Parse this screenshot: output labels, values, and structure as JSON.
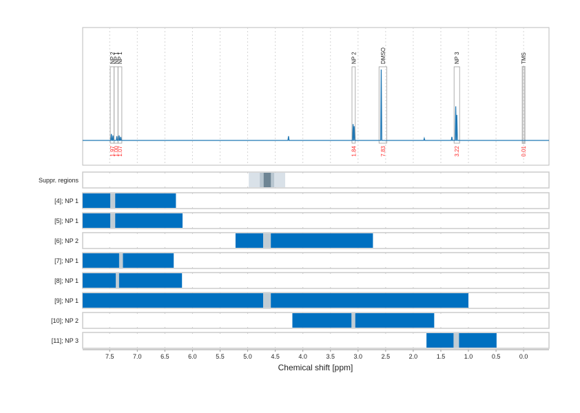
{
  "chart_data": {
    "type": "line",
    "xlabel": "Chemical shift [ppm]",
    "xlim": [
      7.99,
      -0.46
    ],
    "x_reversed": true,
    "xticks": [
      "7.5",
      "7.0",
      "6.5",
      "6.0",
      "5.5",
      "5.0",
      "4.5",
      "4.0",
      "3.5",
      "3.0",
      "2.5",
      "2.0",
      "1.5",
      "1.0",
      "0.5",
      "0.0"
    ],
    "grid": true,
    "colors": {
      "spectrum": "#1f77b4",
      "bar": "#0070c0",
      "gap": "#c0ccd4",
      "integral": "#ff2a2a",
      "frame": "#bbbbbb"
    },
    "spectrum_peaks": [
      {
        "ppm": 7.47,
        "height": 0.09
      },
      {
        "ppm": 7.44,
        "height": 0.07
      },
      {
        "ppm": 7.37,
        "height": 0.06
      },
      {
        "ppm": 7.33,
        "height": 0.07
      },
      {
        "ppm": 7.3,
        "height": 0.05
      },
      {
        "ppm": 4.26,
        "height": 0.06
      },
      {
        "ppm": 3.09,
        "height": 0.23
      },
      {
        "ppm": 3.07,
        "height": 0.2
      },
      {
        "ppm": 2.58,
        "height": 1.0
      },
      {
        "ppm": 1.8,
        "height": 0.03
      },
      {
        "ppm": 1.3,
        "height": 0.05
      },
      {
        "ppm": 1.23,
        "height": 0.48
      },
      {
        "ppm": 1.21,
        "height": 0.36
      }
    ],
    "peak_regions": [
      {
        "label": "NP 2",
        "from": 7.49,
        "to": 7.42,
        "integral": "1.97"
      },
      {
        "label": "NP 1",
        "from": 7.42,
        "to": 7.35,
        "integral": "1.00"
      },
      {
        "label": "NP 1",
        "from": 7.35,
        "to": 7.28,
        "integral": "1.07"
      },
      {
        "label": "NP 2",
        "from": 3.11,
        "to": 3.05,
        "integral": "1.84"
      },
      {
        "label": "DMSO",
        "from": 2.62,
        "to": 2.48,
        "integral": "7.83"
      },
      {
        "label": "NP 3",
        "from": 1.26,
        "to": 1.16,
        "integral": "3.22"
      },
      {
        "label": "TMS",
        "from": 0.02,
        "to": -0.02,
        "integral": "0.01"
      }
    ],
    "suppressed_regions": {
      "label": "Suppr. regions",
      "layers": [
        [
          4.98,
          4.32
        ],
        [
          4.78,
          4.52
        ],
        [
          4.71,
          4.58
        ]
      ]
    },
    "rows": [
      {
        "label": "[4]; NP 1",
        "from": 7.99,
        "to": 6.3,
        "gap": [
          7.49,
          7.4
        ]
      },
      {
        "label": "[5]; NP 1",
        "from": 7.99,
        "to": 6.18,
        "gap": [
          7.49,
          7.4
        ]
      },
      {
        "label": "[6]; NP 2",
        "from": 5.22,
        "to": 2.73,
        "gap": [
          4.72,
          4.58
        ]
      },
      {
        "label": "[7]; NP 1",
        "from": 7.99,
        "to": 6.34,
        "gap": [
          7.33,
          7.26
        ]
      },
      {
        "label": "[8]; NP 1",
        "from": 7.99,
        "to": 6.19,
        "gap": [
          7.39,
          7.33
        ]
      },
      {
        "label": "[9]; NP 1",
        "from": 7.99,
        "to": 1.0,
        "gap": [
          4.72,
          4.58
        ]
      },
      {
        "label": "[10]; NP 2",
        "from": 4.19,
        "to": 1.62,
        "gap": [
          3.12,
          3.05
        ]
      },
      {
        "label": "[11]; NP 3",
        "from": 1.76,
        "to": 0.49,
        "gap": [
          1.27,
          1.17
        ]
      }
    ]
  }
}
